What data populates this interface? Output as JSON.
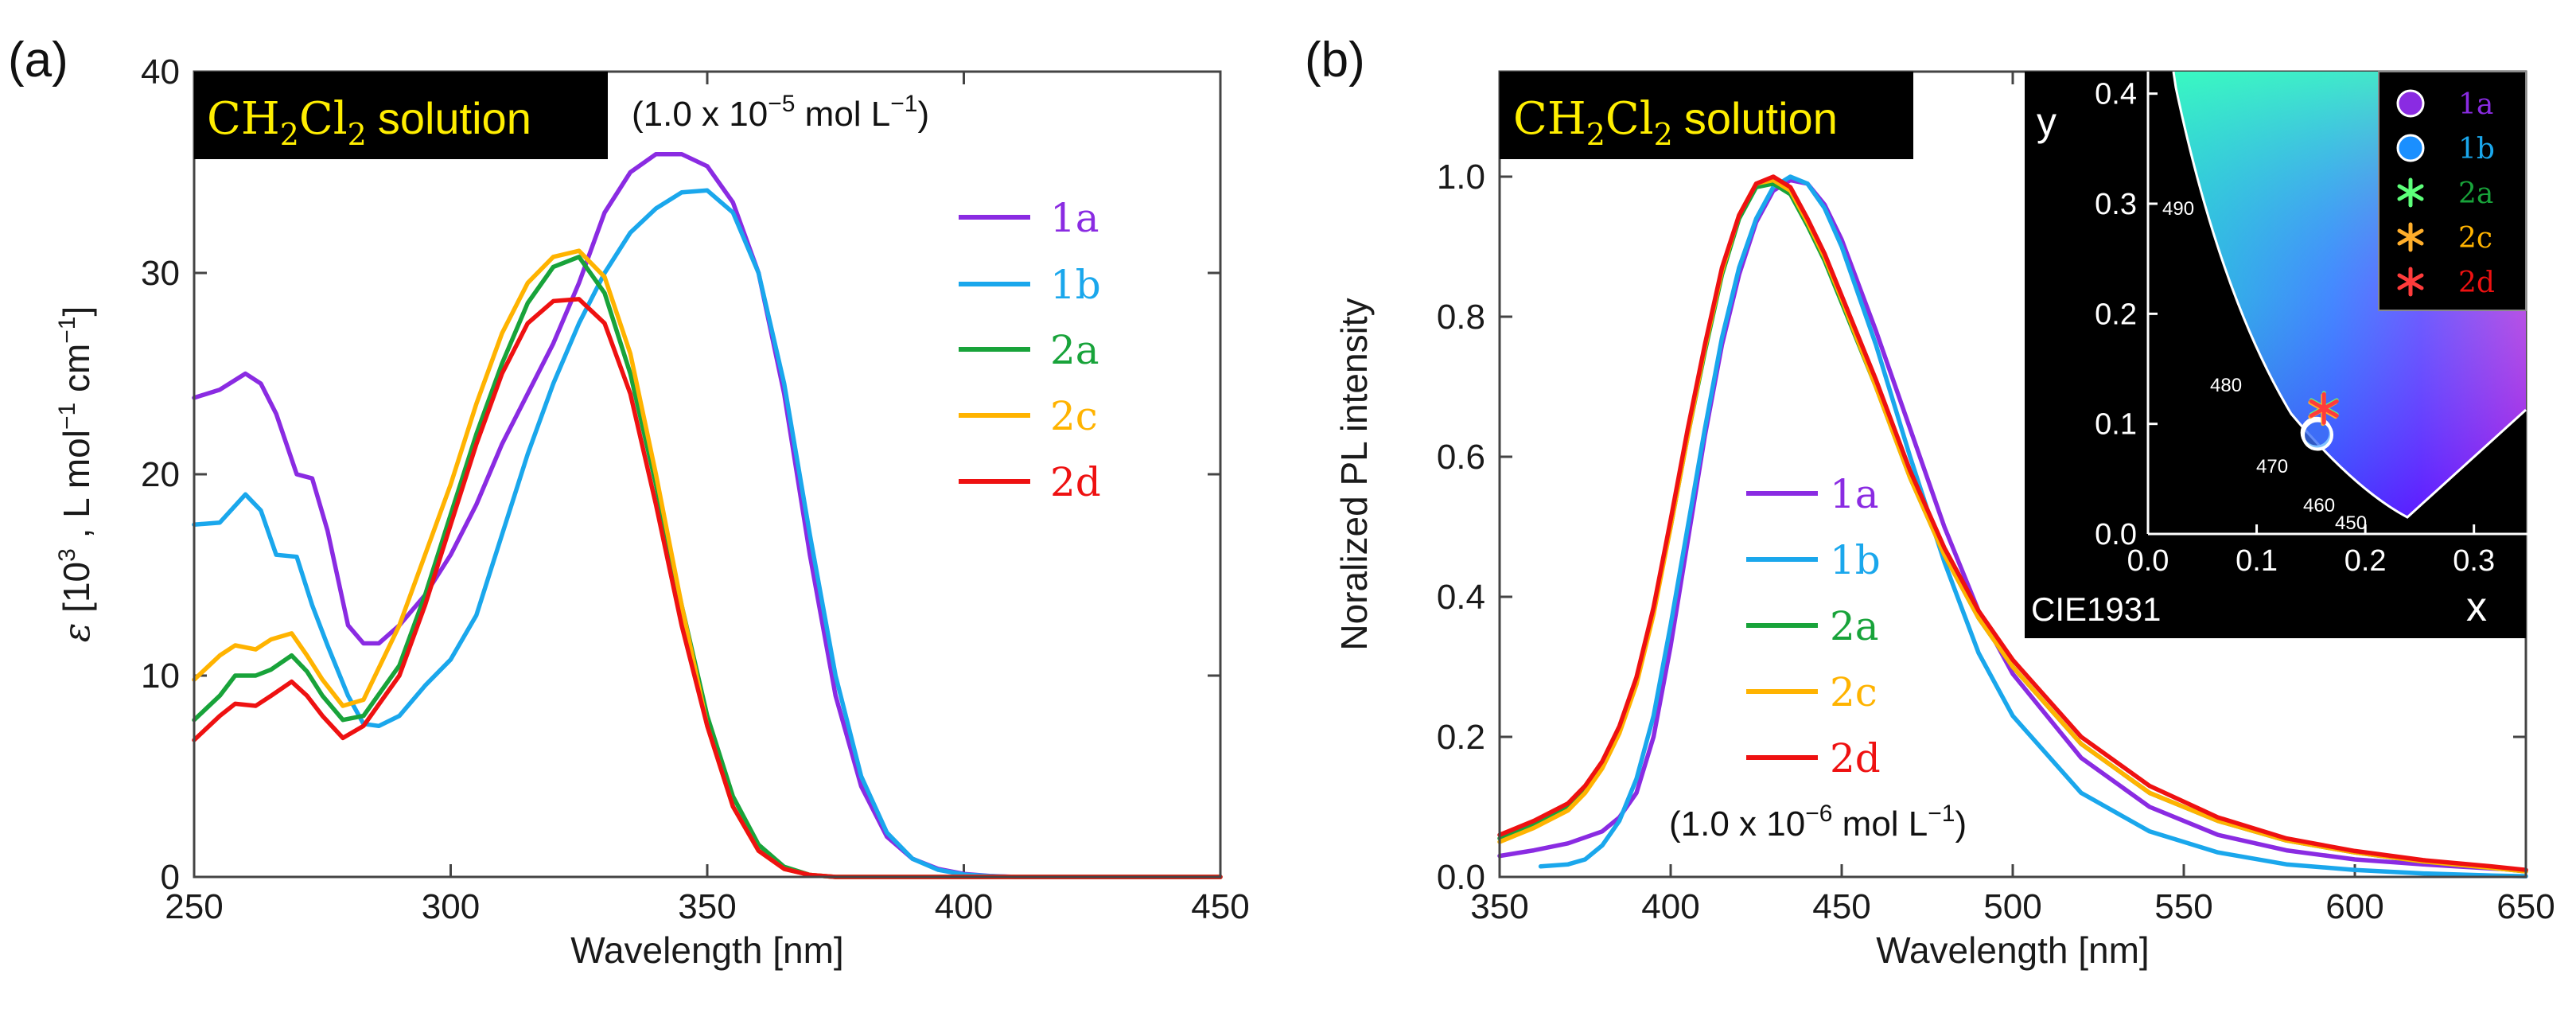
{
  "colors": {
    "1a": "#8a2be2",
    "1b": "#1aa7ec",
    "2a": "#18a33a",
    "2c": "#ffb300",
    "2d": "#ee1111",
    "badge_bg": "#000000",
    "badge_text": "#ffee00"
  },
  "chart_data": [
    {
      "type": "line",
      "panel_label": "(a)",
      "title": "",
      "badge": {
        "main": "CH",
        "sub1": "2",
        "mid": "Cl",
        "sub2": "2",
        "tail": "solution"
      },
      "concentration": {
        "lead": "(1.0 x 10",
        "exp": "−5",
        "tail": " mol L",
        "tail_exp": "−1",
        "close": ")"
      },
      "xlabel": "Wavelength [nm]",
      "ylabel": {
        "eps": "ε",
        "lead": " [10",
        "e1": "3",
        "mid1": " , L mol",
        "e2": "−1",
        "mid2": " cm",
        "e3": "−1",
        "close": "]"
      },
      "xlim": [
        250,
        450
      ],
      "ylim": [
        0,
        40
      ],
      "xticks": [
        250,
        300,
        350,
        400,
        450
      ],
      "yticks": [
        0,
        10,
        20,
        30,
        40
      ],
      "grid": false,
      "legend_position": "right-middle",
      "series": [
        {
          "name": "1a",
          "x": [
            250,
            255,
            260,
            263,
            266,
            270,
            273,
            276,
            280,
            283,
            286,
            290,
            295,
            300,
            305,
            310,
            315,
            320,
            325,
            330,
            335,
            340,
            345,
            350,
            355,
            360,
            365,
            370,
            375,
            380,
            385,
            390,
            395,
            400,
            405,
            410,
            420,
            450
          ],
          "values": [
            23.8,
            24.2,
            25.0,
            24.5,
            23.0,
            20.0,
            19.8,
            17.2,
            12.5,
            11.6,
            11.6,
            12.5,
            14.0,
            16.0,
            18.5,
            21.5,
            24.0,
            26.5,
            29.5,
            33.0,
            35.0,
            35.9,
            35.9,
            35.3,
            33.5,
            30.0,
            24.0,
            16.0,
            9.0,
            4.5,
            2.0,
            0.9,
            0.4,
            0.15,
            0.05,
            0.0,
            0.0,
            0.0
          ]
        },
        {
          "name": "1b",
          "x": [
            250,
            255,
            260,
            263,
            266,
            270,
            273,
            276,
            280,
            283,
            286,
            290,
            295,
            300,
            305,
            310,
            315,
            320,
            325,
            330,
            335,
            340,
            345,
            350,
            355,
            360,
            365,
            370,
            375,
            380,
            385,
            390,
            395,
            400,
            405,
            410,
            420,
            450
          ],
          "values": [
            17.5,
            17.6,
            19.0,
            18.2,
            16.0,
            15.9,
            13.5,
            11.5,
            9.0,
            7.6,
            7.5,
            8.0,
            9.5,
            10.8,
            13.0,
            17.0,
            21.0,
            24.5,
            27.5,
            30.0,
            32.0,
            33.2,
            34.0,
            34.1,
            33.0,
            30.0,
            24.5,
            17.0,
            10.0,
            5.0,
            2.2,
            0.9,
            0.35,
            0.12,
            0.04,
            0.0,
            0.0,
            0.0
          ]
        },
        {
          "name": "2a",
          "x": [
            250,
            255,
            258,
            262,
            265,
            269,
            272,
            275,
            279,
            283,
            290,
            295,
            300,
            305,
            310,
            315,
            320,
            325,
            330,
            335,
            340,
            345,
            350,
            355,
            360,
            365,
            370,
            375,
            450
          ],
          "values": [
            7.8,
            9.0,
            10.0,
            10.0,
            10.3,
            11.0,
            10.2,
            9.0,
            7.8,
            8.0,
            10.5,
            14.0,
            18.0,
            22.0,
            25.5,
            28.5,
            30.3,
            30.8,
            29.0,
            25.0,
            19.5,
            13.5,
            8.0,
            4.0,
            1.6,
            0.5,
            0.1,
            0.0,
            0.0
          ]
        },
        {
          "name": "2c",
          "x": [
            250,
            255,
            258,
            262,
            265,
            269,
            272,
            275,
            279,
            283,
            290,
            295,
            300,
            305,
            310,
            315,
            320,
            325,
            330,
            335,
            340,
            345,
            350,
            355,
            360,
            365,
            370,
            375,
            450
          ],
          "values": [
            9.8,
            11.0,
            11.5,
            11.3,
            11.8,
            12.1,
            11.0,
            9.8,
            8.5,
            8.8,
            12.5,
            16.0,
            19.5,
            23.5,
            27.0,
            29.5,
            30.8,
            31.1,
            29.8,
            26.0,
            20.0,
            13.5,
            7.5,
            3.5,
            1.3,
            0.4,
            0.1,
            0.0,
            0.0
          ]
        },
        {
          "name": "2d",
          "x": [
            250,
            255,
            258,
            262,
            265,
            269,
            272,
            275,
            279,
            283,
            290,
            295,
            300,
            305,
            310,
            315,
            320,
            325,
            330,
            335,
            340,
            345,
            350,
            355,
            360,
            365,
            370,
            375,
            450
          ],
          "values": [
            6.8,
            8.0,
            8.6,
            8.5,
            9.0,
            9.7,
            9.0,
            8.0,
            6.9,
            7.5,
            10.0,
            13.5,
            17.5,
            21.5,
            25.0,
            27.5,
            28.6,
            28.7,
            27.5,
            24.0,
            18.5,
            12.5,
            7.5,
            3.5,
            1.3,
            0.4,
            0.1,
            0.0,
            0.0
          ]
        }
      ]
    },
    {
      "type": "line",
      "panel_label": "(b)",
      "title": "",
      "badge": {
        "main": "CH",
        "sub1": "2",
        "mid": "Cl",
        "sub2": "2",
        "tail": "solution"
      },
      "concentration": {
        "lead": "(1.0 x 10",
        "exp": "−6",
        "tail": " mol L",
        "tail_exp": "−1",
        "close": ")"
      },
      "xlabel": "Wavelength [nm]",
      "ylabel": "Noralized PL intensity",
      "xlim": [
        350,
        650
      ],
      "ylim": [
        0,
        1.15
      ],
      "xticks": [
        350,
        400,
        450,
        500,
        550,
        600,
        650
      ],
      "yticks": [
        "0.0",
        "0.2",
        "0.4",
        "0.6",
        "0.8",
        "1.0"
      ],
      "grid": false,
      "legend_position": "center",
      "series": [
        {
          "name": "1a",
          "x": [
            350,
            360,
            370,
            380,
            385,
            390,
            395,
            400,
            405,
            410,
            415,
            420,
            425,
            430,
            435,
            440,
            445,
            450,
            460,
            470,
            480,
            490,
            500,
            520,
            540,
            560,
            580,
            600,
            620,
            640,
            650
          ],
          "values": [
            0.03,
            0.038,
            0.048,
            0.065,
            0.085,
            0.12,
            0.2,
            0.33,
            0.48,
            0.63,
            0.76,
            0.86,
            0.935,
            0.98,
            0.995,
            0.99,
            0.96,
            0.91,
            0.78,
            0.64,
            0.5,
            0.38,
            0.29,
            0.17,
            0.1,
            0.06,
            0.038,
            0.025,
            0.018,
            0.012,
            0.01
          ]
        },
        {
          "name": "1b",
          "x": [
            362,
            370,
            375,
            380,
            385,
            390,
            395,
            400,
            405,
            410,
            415,
            420,
            425,
            430,
            435,
            440,
            445,
            450,
            460,
            470,
            480,
            490,
            500,
            520,
            540,
            560,
            580,
            600,
            620,
            640,
            650
          ],
          "values": [
            0.015,
            0.018,
            0.025,
            0.045,
            0.08,
            0.14,
            0.23,
            0.36,
            0.5,
            0.64,
            0.77,
            0.87,
            0.94,
            0.985,
            1.0,
            0.99,
            0.955,
            0.9,
            0.76,
            0.6,
            0.45,
            0.32,
            0.23,
            0.12,
            0.065,
            0.035,
            0.018,
            0.01,
            0.005,
            0.002,
            0.001
          ]
        },
        {
          "name": "2a",
          "x": [
            350,
            360,
            370,
            375,
            380,
            385,
            390,
            395,
            400,
            405,
            410,
            415,
            420,
            425,
            430,
            435,
            440,
            445,
            450,
            460,
            470,
            480,
            490,
            500,
            520,
            540,
            560,
            580,
            600,
            620,
            640,
            650
          ],
          "values": [
            0.055,
            0.075,
            0.1,
            0.125,
            0.16,
            0.21,
            0.28,
            0.38,
            0.5,
            0.63,
            0.75,
            0.86,
            0.94,
            0.985,
            0.99,
            0.975,
            0.93,
            0.88,
            0.82,
            0.7,
            0.57,
            0.46,
            0.37,
            0.3,
            0.19,
            0.12,
            0.08,
            0.052,
            0.035,
            0.022,
            0.013,
            0.008
          ]
        },
        {
          "name": "2c",
          "x": [
            350,
            360,
            370,
            375,
            380,
            385,
            390,
            395,
            400,
            405,
            410,
            415,
            420,
            425,
            430,
            435,
            440,
            445,
            450,
            460,
            470,
            480,
            490,
            500,
            520,
            540,
            560,
            580,
            600,
            620,
            640,
            650
          ],
          "values": [
            0.05,
            0.07,
            0.095,
            0.12,
            0.155,
            0.205,
            0.275,
            0.375,
            0.5,
            0.63,
            0.755,
            0.865,
            0.945,
            0.99,
            0.995,
            0.98,
            0.935,
            0.885,
            0.825,
            0.7,
            0.57,
            0.46,
            0.37,
            0.3,
            0.19,
            0.12,
            0.08,
            0.052,
            0.035,
            0.022,
            0.013,
            0.008
          ]
        },
        {
          "name": "2d",
          "x": [
            350,
            360,
            370,
            375,
            380,
            385,
            390,
            395,
            400,
            405,
            410,
            415,
            420,
            425,
            430,
            435,
            440,
            445,
            450,
            460,
            470,
            480,
            490,
            500,
            520,
            540,
            560,
            580,
            600,
            620,
            640,
            650
          ],
          "values": [
            0.06,
            0.08,
            0.105,
            0.13,
            0.165,
            0.215,
            0.285,
            0.385,
            0.51,
            0.64,
            0.76,
            0.87,
            0.945,
            0.99,
            1.0,
            0.985,
            0.94,
            0.89,
            0.83,
            0.71,
            0.58,
            0.47,
            0.38,
            0.31,
            0.2,
            0.13,
            0.085,
            0.055,
            0.037,
            0.024,
            0.015,
            0.01
          ]
        }
      ]
    },
    {
      "type": "scatter",
      "title": "CIE1931",
      "xlabel": "x",
      "ylabel": "y",
      "xlim": [
        0.0,
        0.35
      ],
      "ylim": [
        0.0,
        0.42
      ],
      "xticks": [
        "0.0",
        "0.1",
        "0.2",
        "0.3"
      ],
      "yticks": [
        "0.0",
        "0.1",
        "0.2",
        "0.3",
        "0.4"
      ],
      "locus_labels": [
        "490",
        "480",
        "470",
        "460",
        "450"
      ],
      "points": [
        {
          "name": "1a",
          "x": 0.155,
          "y": 0.092,
          "marker": "circle"
        },
        {
          "name": "1b",
          "x": 0.156,
          "y": 0.09,
          "marker": "circle"
        },
        {
          "name": "2a",
          "x": 0.162,
          "y": 0.115,
          "marker": "asterisk"
        },
        {
          "name": "2c",
          "x": 0.161,
          "y": 0.113,
          "marker": "asterisk"
        },
        {
          "name": "2d",
          "x": 0.162,
          "y": 0.114,
          "marker": "asterisk"
        }
      ]
    }
  ]
}
